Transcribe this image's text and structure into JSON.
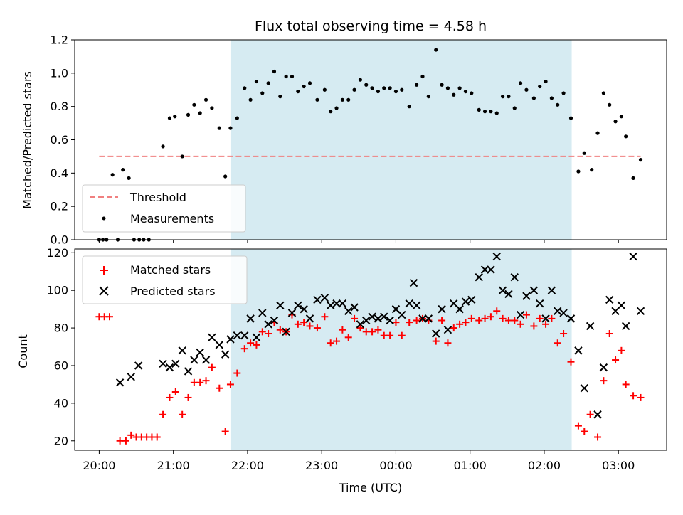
{
  "chart_data": [
    {
      "type": "scatter",
      "title": "Flux total observing time = 4.58 h",
      "xlabel": "",
      "ylabel": "Matched/Predicted stars",
      "xlim": [
        -0.33,
        7.65
      ],
      "ylim": [
        0,
        1.2
      ],
      "yticks": [
        "0.0",
        "0.2",
        "0.4",
        "0.6",
        "0.8",
        "1.0",
        "1.2"
      ],
      "shaded_interval": {
        "from": 1.77,
        "to": 6.37,
        "color": "#add8e6"
      },
      "threshold": {
        "name": "Threshold",
        "value": 0.5,
        "x_range": [
          0.0,
          7.3
        ],
        "color": "#f08080",
        "style": "dashed"
      },
      "legend_position": "lower left",
      "series": [
        {
          "name": "Measurements",
          "marker": "dot",
          "color": "#000000",
          "points": [
            [
              0.0,
              0.0
            ],
            [
              0.05,
              0.0
            ],
            [
              0.1,
              0.0
            ],
            [
              0.18,
              0.39
            ],
            [
              0.25,
              0.0
            ],
            [
              0.32,
              0.42
            ],
            [
              0.4,
              0.37
            ],
            [
              0.47,
              0.0
            ],
            [
              0.54,
              0.0
            ],
            [
              0.6,
              0.0
            ],
            [
              0.67,
              0.0
            ],
            [
              0.86,
              0.56
            ],
            [
              0.95,
              0.73
            ],
            [
              1.02,
              0.74
            ],
            [
              1.12,
              0.5
            ],
            [
              1.2,
              0.75
            ],
            [
              1.28,
              0.81
            ],
            [
              1.36,
              0.76
            ],
            [
              1.44,
              0.84
            ],
            [
              1.52,
              0.79
            ],
            [
              1.62,
              0.67
            ],
            [
              1.7,
              0.38
            ],
            [
              1.77,
              0.67
            ],
            [
              1.86,
              0.73
            ],
            [
              1.96,
              0.91
            ],
            [
              2.04,
              0.84
            ],
            [
              2.12,
              0.95
            ],
            [
              2.2,
              0.88
            ],
            [
              2.28,
              0.94
            ],
            [
              2.36,
              1.01
            ],
            [
              2.44,
              0.86
            ],
            [
              2.52,
              0.98
            ],
            [
              2.6,
              0.98
            ],
            [
              2.68,
              0.89
            ],
            [
              2.76,
              0.92
            ],
            [
              2.84,
              0.94
            ],
            [
              2.94,
              0.84
            ],
            [
              3.04,
              0.9
            ],
            [
              3.12,
              0.77
            ],
            [
              3.2,
              0.79
            ],
            [
              3.28,
              0.84
            ],
            [
              3.36,
              0.84
            ],
            [
              3.44,
              0.9
            ],
            [
              3.52,
              0.96
            ],
            [
              3.6,
              0.93
            ],
            [
              3.68,
              0.91
            ],
            [
              3.76,
              0.89
            ],
            [
              3.84,
              0.91
            ],
            [
              3.92,
              0.91
            ],
            [
              4.0,
              0.89
            ],
            [
              4.08,
              0.9
            ],
            [
              4.18,
              0.8
            ],
            [
              4.28,
              0.93
            ],
            [
              4.36,
              0.98
            ],
            [
              4.44,
              0.86
            ],
            [
              4.54,
              1.14
            ],
            [
              4.62,
              0.93
            ],
            [
              4.7,
              0.91
            ],
            [
              4.78,
              0.87
            ],
            [
              4.86,
              0.91
            ],
            [
              4.94,
              0.89
            ],
            [
              5.02,
              0.88
            ],
            [
              5.12,
              0.78
            ],
            [
              5.2,
              0.77
            ],
            [
              5.28,
              0.77
            ],
            [
              5.36,
              0.76
            ],
            [
              5.44,
              0.86
            ],
            [
              5.52,
              0.86
            ],
            [
              5.6,
              0.79
            ],
            [
              5.68,
              0.94
            ],
            [
              5.76,
              0.9
            ],
            [
              5.86,
              0.85
            ],
            [
              5.94,
              0.92
            ],
            [
              6.02,
              0.95
            ],
            [
              6.1,
              0.85
            ],
            [
              6.18,
              0.81
            ],
            [
              6.26,
              0.88
            ],
            [
              6.36,
              0.73
            ],
            [
              6.46,
              0.41
            ],
            [
              6.54,
              0.52
            ],
            [
              6.64,
              0.42
            ],
            [
              6.72,
              0.64
            ],
            [
              6.8,
              0.88
            ],
            [
              6.88,
              0.81
            ],
            [
              6.96,
              0.71
            ],
            [
              7.04,
              0.74
            ],
            [
              7.1,
              0.62
            ],
            [
              7.2,
              0.37
            ],
            [
              7.3,
              0.48
            ]
          ]
        }
      ]
    },
    {
      "type": "scatter",
      "title": "",
      "xlabel": "Time (UTC)",
      "ylabel": "Count",
      "xlim": [
        -0.33,
        7.65
      ],
      "ylim": [
        15,
        122
      ],
      "yticks": [
        "20",
        "40",
        "60",
        "80",
        "100",
        "120"
      ],
      "xticks": [
        "20:00",
        "21:00",
        "22:00",
        "23:00",
        "00:00",
        "01:00",
        "02:00",
        "03:00"
      ],
      "shaded_interval": {
        "from": 1.77,
        "to": 6.37,
        "color": "#add8e6"
      },
      "legend_position": "upper left",
      "series": [
        {
          "name": "Matched stars",
          "marker": "plus",
          "color": "#ff0000",
          "points": [
            [
              0.0,
              86
            ],
            [
              0.07,
              86
            ],
            [
              0.14,
              86
            ],
            [
              0.28,
              20
            ],
            [
              0.36,
              20
            ],
            [
              0.43,
              23
            ],
            [
              0.5,
              22
            ],
            [
              0.57,
              22
            ],
            [
              0.64,
              22
            ],
            [
              0.71,
              22
            ],
            [
              0.78,
              22
            ],
            [
              0.86,
              34
            ],
            [
              0.95,
              43
            ],
            [
              1.03,
              46
            ],
            [
              1.12,
              34
            ],
            [
              1.2,
              43
            ],
            [
              1.28,
              51
            ],
            [
              1.36,
              51
            ],
            [
              1.44,
              52
            ],
            [
              1.52,
              59
            ],
            [
              1.62,
              48
            ],
            [
              1.7,
              25
            ],
            [
              1.77,
              50
            ],
            [
              1.86,
              56
            ],
            [
              1.96,
              69
            ],
            [
              2.04,
              72
            ],
            [
              2.12,
              71
            ],
            [
              2.2,
              78
            ],
            [
              2.28,
              77
            ],
            [
              2.36,
              83
            ],
            [
              2.44,
              79
            ],
            [
              2.52,
              78
            ],
            [
              2.6,
              87
            ],
            [
              2.68,
              82
            ],
            [
              2.76,
              83
            ],
            [
              2.84,
              81
            ],
            [
              2.94,
              80
            ],
            [
              3.04,
              86
            ],
            [
              3.12,
              72
            ],
            [
              3.2,
              73
            ],
            [
              3.28,
              79
            ],
            [
              3.36,
              75
            ],
            [
              3.44,
              85
            ],
            [
              3.52,
              80
            ],
            [
              3.6,
              78
            ],
            [
              3.68,
              78
            ],
            [
              3.76,
              79
            ],
            [
              3.84,
              76
            ],
            [
              3.92,
              76
            ],
            [
              4.0,
              83
            ],
            [
              4.08,
              76
            ],
            [
              4.18,
              83
            ],
            [
              4.28,
              84
            ],
            [
              4.36,
              85
            ],
            [
              4.44,
              84
            ],
            [
              4.54,
              73
            ],
            [
              4.62,
              84
            ],
            [
              4.7,
              72
            ],
            [
              4.78,
              80
            ],
            [
              4.86,
              82
            ],
            [
              4.94,
              83
            ],
            [
              5.02,
              85
            ],
            [
              5.12,
              84
            ],
            [
              5.2,
              85
            ],
            [
              5.28,
              86
            ],
            [
              5.36,
              89
            ],
            [
              5.44,
              85
            ],
            [
              5.52,
              84
            ],
            [
              5.6,
              84
            ],
            [
              5.68,
              82
            ],
            [
              5.76,
              87
            ],
            [
              5.86,
              81
            ],
            [
              5.94,
              85
            ],
            [
              6.02,
              82
            ],
            [
              6.1,
              85
            ],
            [
              6.18,
              72
            ],
            [
              6.26,
              77
            ],
            [
              6.36,
              62
            ],
            [
              6.46,
              28
            ],
            [
              6.54,
              25
            ],
            [
              6.62,
              34
            ],
            [
              6.72,
              22
            ],
            [
              6.8,
              52
            ],
            [
              6.88,
              77
            ],
            [
              6.96,
              63
            ],
            [
              7.04,
              68
            ],
            [
              7.1,
              50
            ],
            [
              7.2,
              44
            ],
            [
              7.3,
              43
            ]
          ]
        },
        {
          "name": "Predicted stars",
          "marker": "x",
          "color": "#000000",
          "points": [
            [
              0.28,
              51
            ],
            [
              0.43,
              54
            ],
            [
              0.53,
              60
            ],
            [
              0.86,
              61
            ],
            [
              0.95,
              59
            ],
            [
              1.03,
              61
            ],
            [
              1.12,
              68
            ],
            [
              1.2,
              57
            ],
            [
              1.28,
              63
            ],
            [
              1.36,
              67
            ],
            [
              1.44,
              63
            ],
            [
              1.52,
              75
            ],
            [
              1.62,
              71
            ],
            [
              1.7,
              66
            ],
            [
              1.77,
              74
            ],
            [
              1.86,
              76
            ],
            [
              1.96,
              76
            ],
            [
              2.04,
              85
            ],
            [
              2.12,
              75
            ],
            [
              2.2,
              88
            ],
            [
              2.28,
              82
            ],
            [
              2.36,
              84
            ],
            [
              2.44,
              92
            ],
            [
              2.52,
              78
            ],
            [
              2.6,
              88
            ],
            [
              2.68,
              92
            ],
            [
              2.76,
              90
            ],
            [
              2.84,
              85
            ],
            [
              2.94,
              95
            ],
            [
              3.04,
              96
            ],
            [
              3.12,
              92
            ],
            [
              3.2,
              93
            ],
            [
              3.28,
              93
            ],
            [
              3.36,
              89
            ],
            [
              3.44,
              91
            ],
            [
              3.52,
              82
            ],
            [
              3.6,
              84
            ],
            [
              3.68,
              86
            ],
            [
              3.76,
              85
            ],
            [
              3.84,
              86
            ],
            [
              3.92,
              84
            ],
            [
              4.0,
              90
            ],
            [
              4.08,
              87
            ],
            [
              4.18,
              93
            ],
            [
              4.24,
              104
            ],
            [
              4.28,
              92
            ],
            [
              4.36,
              85
            ],
            [
              4.44,
              85
            ],
            [
              4.54,
              77
            ],
            [
              4.62,
              90
            ],
            [
              4.7,
              79
            ],
            [
              4.78,
              93
            ],
            [
              4.86,
              90
            ],
            [
              4.94,
              94
            ],
            [
              5.02,
              95
            ],
            [
              5.12,
              107
            ],
            [
              5.2,
              111
            ],
            [
              5.28,
              111
            ],
            [
              5.36,
              118
            ],
            [
              5.44,
              100
            ],
            [
              5.52,
              98
            ],
            [
              5.6,
              107
            ],
            [
              5.68,
              87
            ],
            [
              5.76,
              97
            ],
            [
              5.86,
              100
            ],
            [
              5.94,
              93
            ],
            [
              6.02,
              85
            ],
            [
              6.1,
              100
            ],
            [
              6.18,
              89
            ],
            [
              6.26,
              88
            ],
            [
              6.36,
              85
            ],
            [
              6.46,
              68
            ],
            [
              6.54,
              48
            ],
            [
              6.62,
              81
            ],
            [
              6.72,
              34
            ],
            [
              6.8,
              59
            ],
            [
              6.88,
              95
            ],
            [
              6.96,
              89
            ],
            [
              7.04,
              92
            ],
            [
              7.1,
              81
            ],
            [
              7.2,
              118
            ],
            [
              7.3,
              89
            ]
          ]
        }
      ]
    }
  ]
}
